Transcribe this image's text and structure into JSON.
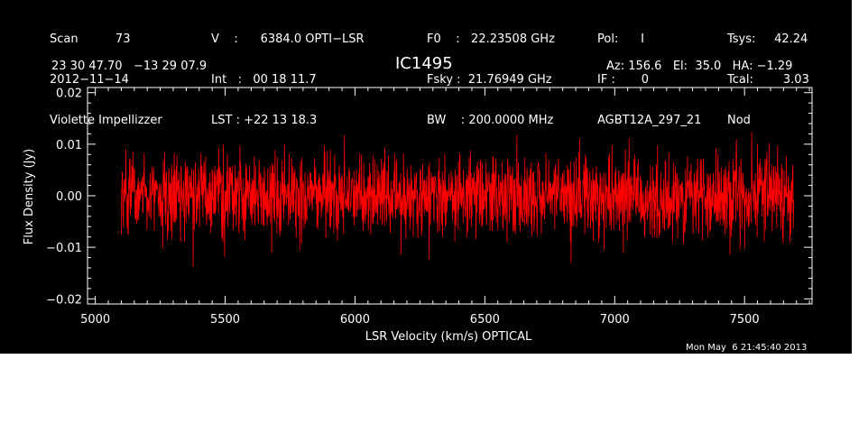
{
  "header": {
    "col1": [
      "Scan          73",
      "2012−11−14",
      "Violette Impellizzer"
    ],
    "col2": [
      "V    :      6384.0 OPTI−LSR",
      "Int   :   00 18 11.7",
      "LST : +22 13 18.3"
    ],
    "col3": [
      "F0    :   22.23508 GHz",
      "Fsky :  21.76949 GHz",
      "BW    : 200.0000 MHz"
    ],
    "col4": [
      "Pol:      I",
      "IF :       0",
      "AGBT12A_297_21"
    ],
    "col5": [
      "Tsys:     42.24",
      "Tcal:        3.03",
      "Nod"
    ],
    "coords": "23 30 47.70   −13 29 07.9",
    "source": "IC1495",
    "pointing": "Az: 156.6   El:  35.0   HA: −1.29",
    "timestamp": "Mon May  6 21:45:40 2013"
  },
  "chart_data": {
    "type": "line",
    "xlabel": "LSR Velocity (km/s) OPTICAL",
    "ylabel": "Flux Density (Jy)",
    "xlim": [
      4970,
      7760
    ],
    "ylim": [
      -0.021,
      0.021
    ],
    "x_ticks": [
      5000,
      5500,
      6000,
      6500,
      7000,
      7500
    ],
    "x_tick_labels": [
      "5000",
      "5500",
      "6000",
      "6500",
      "7000",
      "7500"
    ],
    "y_ticks": [
      -0.02,
      -0.01,
      0.0,
      0.01,
      0.02
    ],
    "y_tick_labels": [
      "−0.02",
      "−0.01",
      "0.00",
      "0.01",
      "0.02"
    ],
    "x_range": [
      5100,
      7690
    ],
    "noise_rms": 0.004,
    "series": [
      {
        "color": "#ff0000"
      }
    ],
    "grid": false
  }
}
